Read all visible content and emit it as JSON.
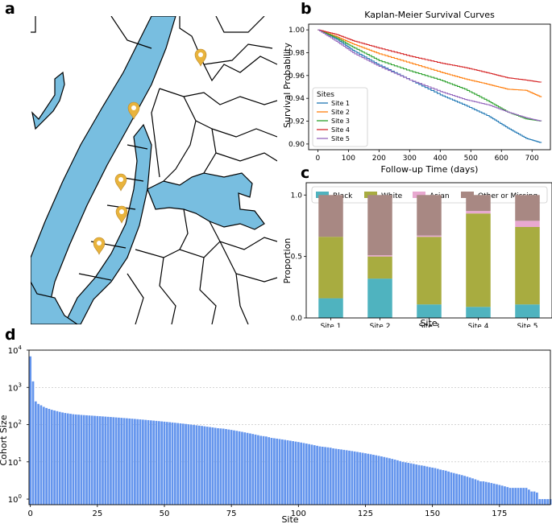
{
  "panels": {
    "a": "a",
    "b": "b",
    "c": "c",
    "d": "d"
  },
  "colors": {
    "water": "#78bee0",
    "land": "#ffffff",
    "pin": "#e8b33c",
    "site1": "#1f77b4",
    "site2": "#ff7f0e",
    "site3": "#2ca02c",
    "site4": "#d62728",
    "site5": "#9467bd",
    "black": "#4fb3bf",
    "white": "#a8ac40",
    "asian": "#e8a8d0",
    "other": "#a88883",
    "cohort_bar": "#6495ed"
  },
  "map": {
    "pins": 5
  },
  "chart_data": [
    {
      "id": "b",
      "type": "line",
      "title": "Kaplan-Meier Survival Curves",
      "xlabel": "Follow-up Time (days)",
      "ylabel": "Survival Probability",
      "xlim": [
        -30,
        760
      ],
      "ylim": [
        0.895,
        1.005
      ],
      "xticks": [
        0,
        100,
        200,
        300,
        400,
        500,
        600,
        700
      ],
      "yticks": [
        0.9,
        0.92,
        0.94,
        0.96,
        0.98,
        1.0
      ],
      "ytick_labels": [
        "0.90",
        "0.92",
        "0.94",
        "0.96",
        "0.98",
        "1.00"
      ],
      "legend_title": "Sites",
      "legend_position": "lower-left",
      "series": [
        {
          "name": "Site 1",
          "color_key": "site1",
          "x": [
            0,
            60,
            120,
            200,
            300,
            400,
            480,
            560,
            620,
            680,
            730
          ],
          "y": [
            1.0,
            0.992,
            0.981,
            0.969,
            0.956,
            0.943,
            0.934,
            0.924,
            0.914,
            0.905,
            0.901
          ]
        },
        {
          "name": "Site 2",
          "color_key": "site2",
          "x": [
            0,
            60,
            120,
            200,
            300,
            400,
            480,
            560,
            620,
            680,
            730
          ],
          "y": [
            1.0,
            0.994,
            0.987,
            0.979,
            0.971,
            0.963,
            0.957,
            0.952,
            0.948,
            0.947,
            0.941
          ]
        },
        {
          "name": "Site 3",
          "color_key": "site3",
          "x": [
            0,
            60,
            120,
            200,
            300,
            400,
            480,
            560,
            620,
            680,
            730
          ],
          "y": [
            1.0,
            0.993,
            0.984,
            0.973,
            0.964,
            0.956,
            0.948,
            0.937,
            0.928,
            0.922,
            0.92
          ]
        },
        {
          "name": "Site 4",
          "color_key": "site4",
          "x": [
            0,
            60,
            120,
            200,
            300,
            400,
            480,
            560,
            620,
            680,
            730
          ],
          "y": [
            1.0,
            0.996,
            0.99,
            0.984,
            0.977,
            0.971,
            0.967,
            0.962,
            0.958,
            0.956,
            0.954
          ]
        },
        {
          "name": "Site 5",
          "color_key": "site5",
          "x": [
            0,
            60,
            120,
            200,
            300,
            400,
            480,
            560,
            620,
            680,
            730
          ],
          "y": [
            1.0,
            0.99,
            0.979,
            0.968,
            0.956,
            0.946,
            0.939,
            0.934,
            0.928,
            0.923,
            0.92
          ]
        }
      ]
    },
    {
      "id": "c",
      "type": "bar",
      "stacked": true,
      "xlabel": "Site",
      "ylabel": "Proportion",
      "ylim": [
        0,
        1.1
      ],
      "yticks": [
        0.0,
        0.5,
        1.0
      ],
      "ytick_labels": [
        "0.0",
        "0.5",
        "1.0"
      ],
      "legend_position": "top",
      "categories": [
        "Site 1",
        "Site 2",
        "Site 3",
        "Site 4",
        "Site 5"
      ],
      "series": [
        {
          "name": "Black",
          "color_key": "black",
          "values": [
            0.16,
            0.32,
            0.11,
            0.09,
            0.11
          ]
        },
        {
          "name": "White",
          "color_key": "white",
          "values": [
            0.5,
            0.18,
            0.55,
            0.76,
            0.63
          ]
        },
        {
          "name": "Asian",
          "color_key": "asian",
          "values": [
            0.0,
            0.01,
            0.01,
            0.02,
            0.05
          ]
        },
        {
          "name": "Other or Missing",
          "color_key": "other",
          "values": [
            0.34,
            0.49,
            0.33,
            0.13,
            0.21
          ]
        }
      ]
    },
    {
      "id": "d",
      "type": "bar",
      "scale": "log",
      "xlabel": "Site",
      "ylabel": "Cohort Size",
      "xlim": [
        -0.5,
        194
      ],
      "ylog_range": [
        -0.15,
        4.0
      ],
      "xticks": [
        0,
        25,
        50,
        75,
        100,
        125,
        150,
        175
      ],
      "yticks": [
        0,
        1,
        2,
        3,
        4
      ],
      "ytick_labels": [
        [
          "10",
          "0"
        ],
        [
          "10",
          "1"
        ],
        [
          "10",
          "2"
        ],
        [
          "10",
          "3"
        ],
        [
          "10",
          "4"
        ]
      ],
      "grid": true,
      "values": [
        6800,
        1450,
        420,
        360,
        330,
        300,
        280,
        265,
        250,
        240,
        230,
        220,
        212,
        205,
        200,
        195,
        190,
        187,
        185,
        182,
        180,
        178,
        176,
        174,
        172,
        170,
        168,
        166,
        164,
        162,
        160,
        158,
        156,
        154,
        152,
        150,
        148,
        146,
        144,
        142,
        140,
        138,
        136,
        134,
        132,
        130,
        128,
        126,
        124,
        122,
        120,
        118,
        116,
        114,
        112,
        110,
        108,
        106,
        104,
        102,
        100,
        98,
        96,
        94,
        92,
        90,
        88,
        86,
        84,
        82,
        80,
        79,
        78,
        76,
        74,
        72,
        70,
        68,
        66,
        64,
        62,
        60,
        58,
        56,
        54,
        52,
        50,
        49,
        48,
        46,
        44,
        43,
        42,
        41,
        40,
        39,
        38,
        37,
        36,
        35,
        34,
        33,
        32,
        31,
        30,
        29,
        28,
        27,
        26,
        25.5,
        25,
        24.5,
        24,
        23,
        22.5,
        22,
        21.5,
        21,
        20.5,
        20,
        19.5,
        19,
        18.5,
        18,
        17.5,
        17,
        16.5,
        16,
        15.5,
        15,
        14.5,
        14,
        13.5,
        13,
        12.5,
        12,
        11.5,
        11,
        10.5,
        10,
        9.7,
        9.4,
        9.1,
        8.8,
        8.5,
        8.2,
        8,
        7.8,
        7.5,
        7.2,
        7,
        6.8,
        6.5,
        6.2,
        6,
        5.8,
        5.5,
        5.2,
        5,
        4.8,
        4.6,
        4.4,
        4.2,
        4,
        3.8,
        3.6,
        3.4,
        3.2,
        3,
        3,
        2.9,
        2.8,
        2.7,
        2.6,
        2.5,
        2.4,
        2.3,
        2.2,
        2.1,
        2,
        2,
        2,
        2,
        2,
        2,
        2,
        1.8,
        1.6,
        1.6,
        1.5,
        1,
        1,
        1,
        1,
        1,
        1,
        1,
        1,
        1
      ]
    }
  ]
}
